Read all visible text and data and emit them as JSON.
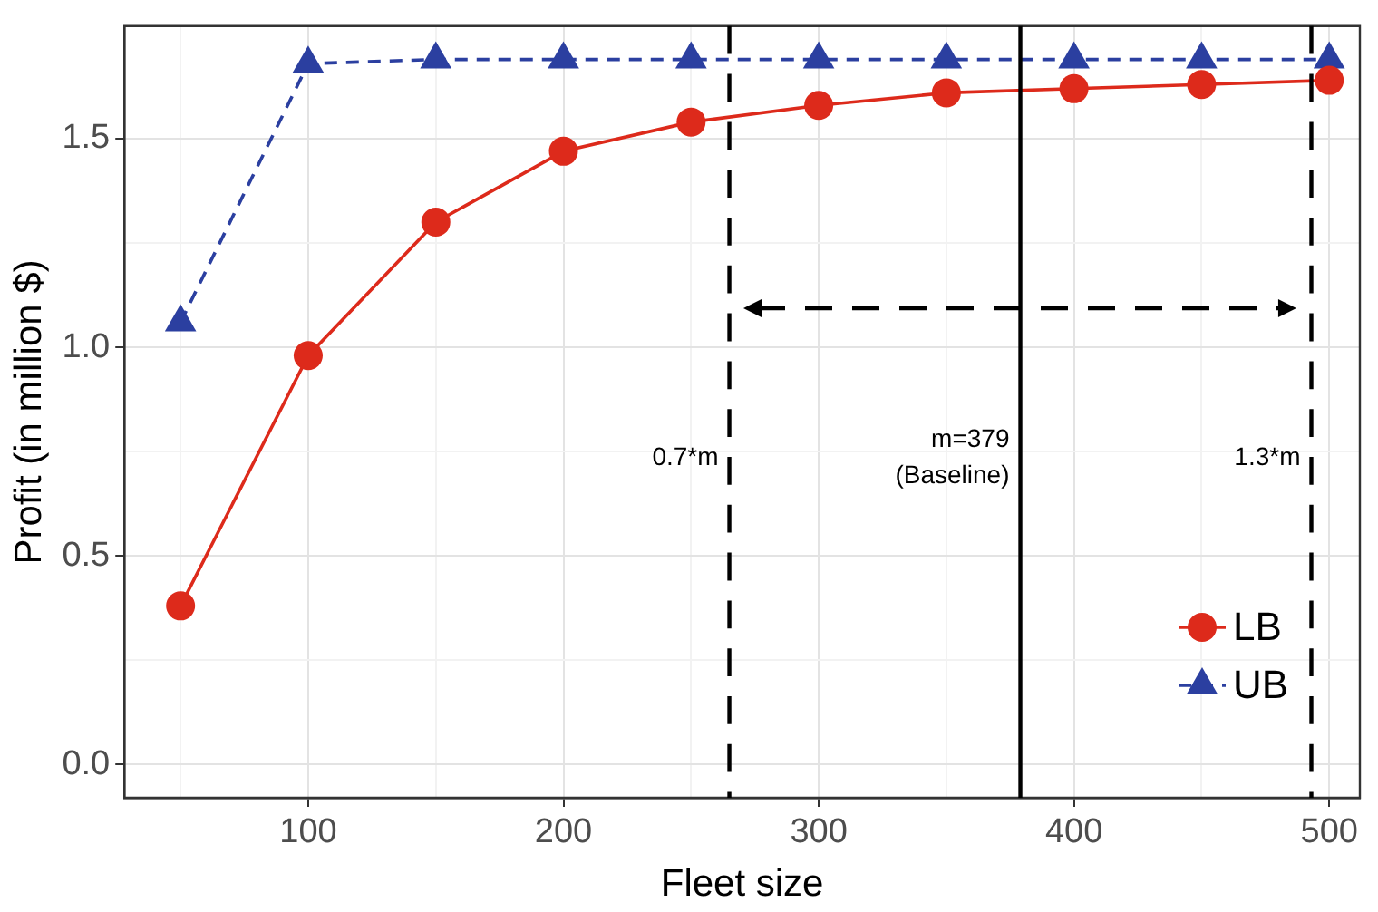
{
  "chart_data": {
    "type": "line",
    "xlabel": "Fleet size",
    "ylabel": "Profit (in million $)",
    "x": [
      50,
      100,
      150,
      200,
      250,
      300,
      350,
      400,
      450,
      500
    ],
    "series": [
      {
        "name": "LB",
        "color": "#dd2a1b",
        "values": [
          0.38,
          0.98,
          1.3,
          1.47,
          1.54,
          1.58,
          1.61,
          1.62,
          1.63,
          1.64
        ],
        "marker": "circle",
        "line_style": "solid"
      },
      {
        "name": "UB",
        "color": "#2b3fa0",
        "values": [
          1.06,
          1.68,
          1.69,
          1.69,
          1.69,
          1.69,
          1.69,
          1.69,
          1.69,
          1.69
        ],
        "marker": "triangle",
        "line_style": "dashed"
      }
    ],
    "xlim": [
      28,
      512
    ],
    "ylim": [
      -0.08,
      1.77
    ],
    "xticks": [
      {
        "value": 50,
        "label": null
      },
      100,
      {
        "value": 150,
        "label": null
      },
      200,
      {
        "value": 250,
        "label": null
      },
      300,
      {
        "value": 350,
        "label": null
      },
      400,
      {
        "value": 450,
        "label": null
      },
      500
    ],
    "yticks": [
      {
        "value": 0,
        "label": "0.0"
      },
      {
        "value": 0.25,
        "label": null
      },
      0.5,
      {
        "value": 0.75,
        "label": null
      },
      {
        "value": 1,
        "label": "1.0"
      },
      {
        "value": 1.25,
        "label": null
      },
      1.5
    ],
    "ref_lines": [
      {
        "axis": "x",
        "value": 265,
        "label": "0.7*m",
        "color": "#000000",
        "line_style": "dashed"
      },
      {
        "axis": "x",
        "value": 379,
        "label": "m=379\n(Baseline)",
        "color": "#000000",
        "line_style": "solid"
      },
      {
        "axis": "x",
        "value": 493,
        "label": "1.3*m",
        "color": "#000000",
        "line_style": "dashed"
      }
    ],
    "grid": true,
    "legend": "bottom right"
  }
}
